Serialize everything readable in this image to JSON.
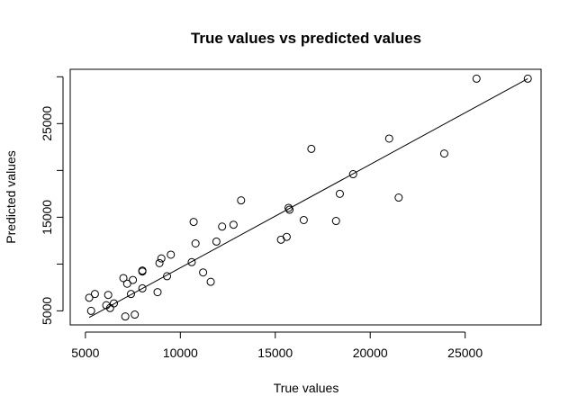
{
  "chart_data": {
    "type": "scatter",
    "title": "True values vs predicted values",
    "xlabel": "True values",
    "ylabel": "Predicted values",
    "xlim": [
      4200,
      29000
    ],
    "ylim": [
      3500,
      30800
    ],
    "xticks": [
      5000,
      10000,
      15000,
      20000,
      25000
    ],
    "yticks": [
      5000,
      15000,
      25000
    ],
    "grid": false,
    "points": [
      {
        "x": 5200,
        "y": 6400
      },
      {
        "x": 5300,
        "y": 5000
      },
      {
        "x": 5500,
        "y": 6800
      },
      {
        "x": 6100,
        "y": 5600
      },
      {
        "x": 6200,
        "y": 6700
      },
      {
        "x": 6300,
        "y": 5300
      },
      {
        "x": 6500,
        "y": 5800
      },
      {
        "x": 7000,
        "y": 8500
      },
      {
        "x": 7100,
        "y": 4400
      },
      {
        "x": 7200,
        "y": 7900
      },
      {
        "x": 7400,
        "y": 6800
      },
      {
        "x": 7500,
        "y": 8300
      },
      {
        "x": 7600,
        "y": 4600
      },
      {
        "x": 8000,
        "y": 9200
      },
      {
        "x": 8000,
        "y": 9300
      },
      {
        "x": 8000,
        "y": 7400
      },
      {
        "x": 8800,
        "y": 7000
      },
      {
        "x": 8900,
        "y": 10100
      },
      {
        "x": 9000,
        "y": 10600
      },
      {
        "x": 9300,
        "y": 8700
      },
      {
        "x": 9500,
        "y": 11000
      },
      {
        "x": 10600,
        "y": 10200
      },
      {
        "x": 10700,
        "y": 14500
      },
      {
        "x": 10800,
        "y": 12200
      },
      {
        "x": 11200,
        "y": 9100
      },
      {
        "x": 11600,
        "y": 8100
      },
      {
        "x": 11900,
        "y": 12400
      },
      {
        "x": 12200,
        "y": 14000
      },
      {
        "x": 12800,
        "y": 14200
      },
      {
        "x": 13200,
        "y": 16800
      },
      {
        "x": 15300,
        "y": 12600
      },
      {
        "x": 15600,
        "y": 12900
      },
      {
        "x": 15700,
        "y": 16000
      },
      {
        "x": 15750,
        "y": 15800
      },
      {
        "x": 16500,
        "y": 14700
      },
      {
        "x": 16900,
        "y": 22300
      },
      {
        "x": 18200,
        "y": 14600
      },
      {
        "x": 18400,
        "y": 17500
      },
      {
        "x": 19100,
        "y": 19600
      },
      {
        "x": 21000,
        "y": 23400
      },
      {
        "x": 21500,
        "y": 17100
      },
      {
        "x": 23900,
        "y": 21800
      },
      {
        "x": 25600,
        "y": 29800
      },
      {
        "x": 28300,
        "y": 29800
      }
    ],
    "fit_line": {
      "x": [
        5200,
        28300
      ],
      "y": [
        4300,
        29800
      ]
    }
  }
}
